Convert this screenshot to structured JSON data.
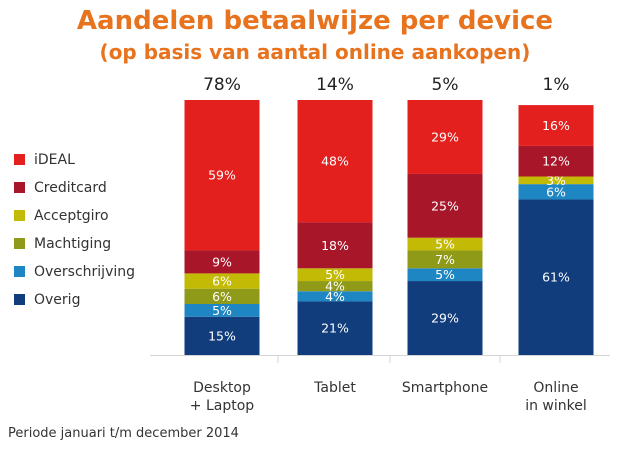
{
  "title": "Aandelen betaalwijze per device",
  "subtitle": "(op basis van aantal online aankopen)",
  "footnote": "Periode januari t/m december 2014",
  "colors": {
    "iDEAL": "#e3201d",
    "Creditcard": "#a8162a",
    "Acceptgiro": "#c3ba05",
    "Machtiging": "#8f9a18",
    "Overschrijving": "#1f86c4",
    "Overig": "#113d7c"
  },
  "legend": [
    "iDEAL",
    "Creditcard",
    "Acceptgiro",
    "Machtiging",
    "Overschrijving",
    "Overig"
  ],
  "chart_data": {
    "type": "bar",
    "stacked": true,
    "title": "Aandelen betaalwijze per device",
    "subtitle": "(op basis van aantal online aankopen)",
    "categories": [
      [
        "Desktop",
        "+ Laptop"
      ],
      [
        "Tablet"
      ],
      [
        "Smartphone"
      ],
      [
        "Online",
        "in winkel"
      ]
    ],
    "category_totals": [
      "78%",
      "14%",
      "5%",
      "1%"
    ],
    "ylim": [
      0,
      100
    ],
    "xlabel": "",
    "ylabel": "",
    "grid": false,
    "legend_position": "left",
    "series": [
      {
        "name": "Overig",
        "values": [
          15,
          21,
          29,
          61
        ],
        "labels": [
          "15%",
          "21%",
          "29%",
          "61%"
        ]
      },
      {
        "name": "Overschrijving",
        "values": [
          5,
          4,
          5,
          6
        ],
        "labels": [
          "5%",
          "4%",
          "5%",
          "6%"
        ]
      },
      {
        "name": "Machtiging",
        "values": [
          6,
          4,
          7,
          0
        ],
        "labels": [
          "6%",
          "4%",
          "7%",
          ""
        ]
      },
      {
        "name": "Acceptgiro",
        "values": [
          6,
          5,
          5,
          3
        ],
        "labels": [
          "6%",
          "5%",
          "5%",
          "3%"
        ]
      },
      {
        "name": "Creditcard",
        "values": [
          9,
          18,
          25,
          12
        ],
        "labels": [
          "9%",
          "18%",
          "25%",
          "12%"
        ]
      },
      {
        "name": "iDEAL",
        "values": [
          59,
          48,
          29,
          16
        ],
        "labels": [
          "59%",
          "48%",
          "29%",
          "16%"
        ]
      }
    ]
  }
}
